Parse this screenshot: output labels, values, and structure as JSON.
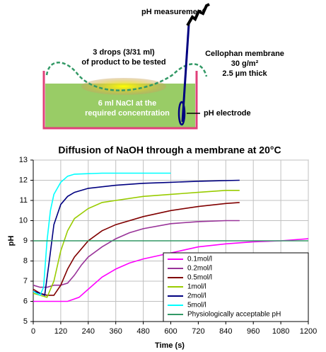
{
  "diagram": {
    "ph_measurement": "pH measurement",
    "drops": [
      "3 drops (3/31 ml)",
      "of product to be tested"
    ],
    "membrane": [
      "Cellophan membrane",
      "30 g/m²",
      "2.5 µm thick"
    ],
    "nacl": [
      "6 ml NaCl at the",
      "required concentration"
    ],
    "electrode": "pH electrode"
  },
  "chart_data": {
    "type": "line",
    "title": "Diffusion of NaOH through a membrane at 20°C",
    "x_label": "Time (s)",
    "y_label": "pH",
    "xlim": [
      0,
      1200
    ],
    "xticks": [
      0,
      120,
      240,
      360,
      480,
      600,
      720,
      840,
      960,
      1080,
      1200
    ],
    "ylim": [
      5,
      13
    ],
    "yticks": [
      5,
      6,
      7,
      8,
      9,
      10,
      11,
      12,
      13
    ],
    "grid": true,
    "legend": "lower right",
    "series": [
      {
        "name": "0.1mol/l",
        "color": "#ff00ff",
        "x": [
          0,
          60,
          150,
          200,
          240,
          300,
          360,
          420,
          480,
          600,
          720,
          840,
          960,
          1080,
          1200
        ],
        "values": [
          6.0,
          6.0,
          6.0,
          6.2,
          6.6,
          7.2,
          7.6,
          7.9,
          8.1,
          8.4,
          8.7,
          8.85,
          8.95,
          9.0,
          9.1
        ]
      },
      {
        "name": "0.2mol/l",
        "color": "#993399",
        "x": [
          0,
          30,
          60,
          90,
          120,
          150,
          180,
          210,
          240,
          300,
          360,
          420,
          480,
          600,
          720,
          840,
          900
        ],
        "values": [
          6.8,
          6.7,
          6.7,
          6.8,
          6.8,
          6.9,
          7.3,
          7.8,
          8.2,
          8.7,
          9.1,
          9.4,
          9.6,
          9.85,
          9.95,
          10.0,
          10.0
        ]
      },
      {
        "name": "0.5mol/l",
        "color": "#800000",
        "x": [
          0,
          30,
          60,
          90,
          120,
          150,
          180,
          240,
          300,
          360,
          480,
          600,
          720,
          840,
          900
        ],
        "values": [
          6.6,
          6.4,
          6.3,
          6.3,
          6.8,
          7.6,
          8.2,
          9.0,
          9.5,
          9.8,
          10.2,
          10.5,
          10.7,
          10.85,
          10.9
        ]
      },
      {
        "name": "1mol/l",
        "color": "#99cc00",
        "x": [
          0,
          30,
          60,
          90,
          120,
          150,
          180,
          240,
          300,
          360,
          480,
          600,
          720,
          840,
          900
        ],
        "values": [
          6.4,
          6.3,
          6.2,
          7.0,
          8.5,
          9.5,
          10.1,
          10.6,
          10.9,
          11.0,
          11.2,
          11.3,
          11.4,
          11.5,
          11.5
        ]
      },
      {
        "name": "2mol/l",
        "color": "#000080",
        "x": [
          0,
          30,
          50,
          70,
          90,
          120,
          150,
          180,
          240,
          360,
          480,
          600,
          720,
          900
        ],
        "values": [
          6.5,
          6.4,
          6.3,
          8.0,
          9.8,
          10.8,
          11.2,
          11.4,
          11.6,
          11.75,
          11.85,
          11.9,
          11.95,
          12.0
        ]
      },
      {
        "name": "5mol/l",
        "color": "#00ffff",
        "x": [
          0,
          30,
          45,
          60,
          75,
          90,
          120,
          150,
          180,
          300,
          480,
          600
        ],
        "values": [
          6.5,
          6.3,
          6.7,
          9.0,
          10.5,
          11.3,
          11.9,
          12.2,
          12.3,
          12.35,
          12.35,
          12.35
        ]
      },
      {
        "name": "Physiologically acceptable pH",
        "color": "#339966",
        "x": [
          0,
          1200
        ],
        "values": [
          9,
          9
        ]
      }
    ]
  }
}
